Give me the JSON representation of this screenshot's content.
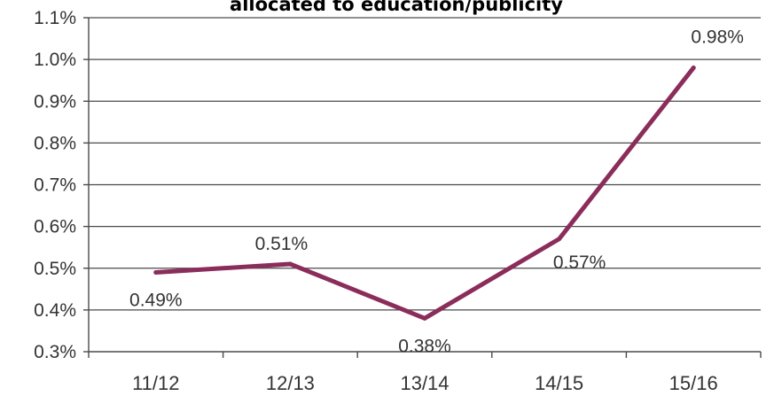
{
  "chart_data": {
    "type": "line",
    "title": "allocated to education/publicity",
    "categories": [
      "11/12",
      "12/13",
      "13/14",
      "14/15",
      "15/16"
    ],
    "values": [
      0.49,
      0.51,
      0.38,
      0.57,
      0.98
    ],
    "data_labels": [
      "0.49%",
      "0.51%",
      "0.38%",
      "0.57%",
      "0.98%"
    ],
    "y_ticks": [
      "0.3%",
      "0.4%",
      "0.5%",
      "0.6%",
      "0.7%",
      "0.8%",
      "0.9%",
      "1.0%",
      "1.1%"
    ],
    "ylim": [
      0.3,
      1.1
    ],
    "grid": true,
    "line_color": "#8b2d5b"
  }
}
